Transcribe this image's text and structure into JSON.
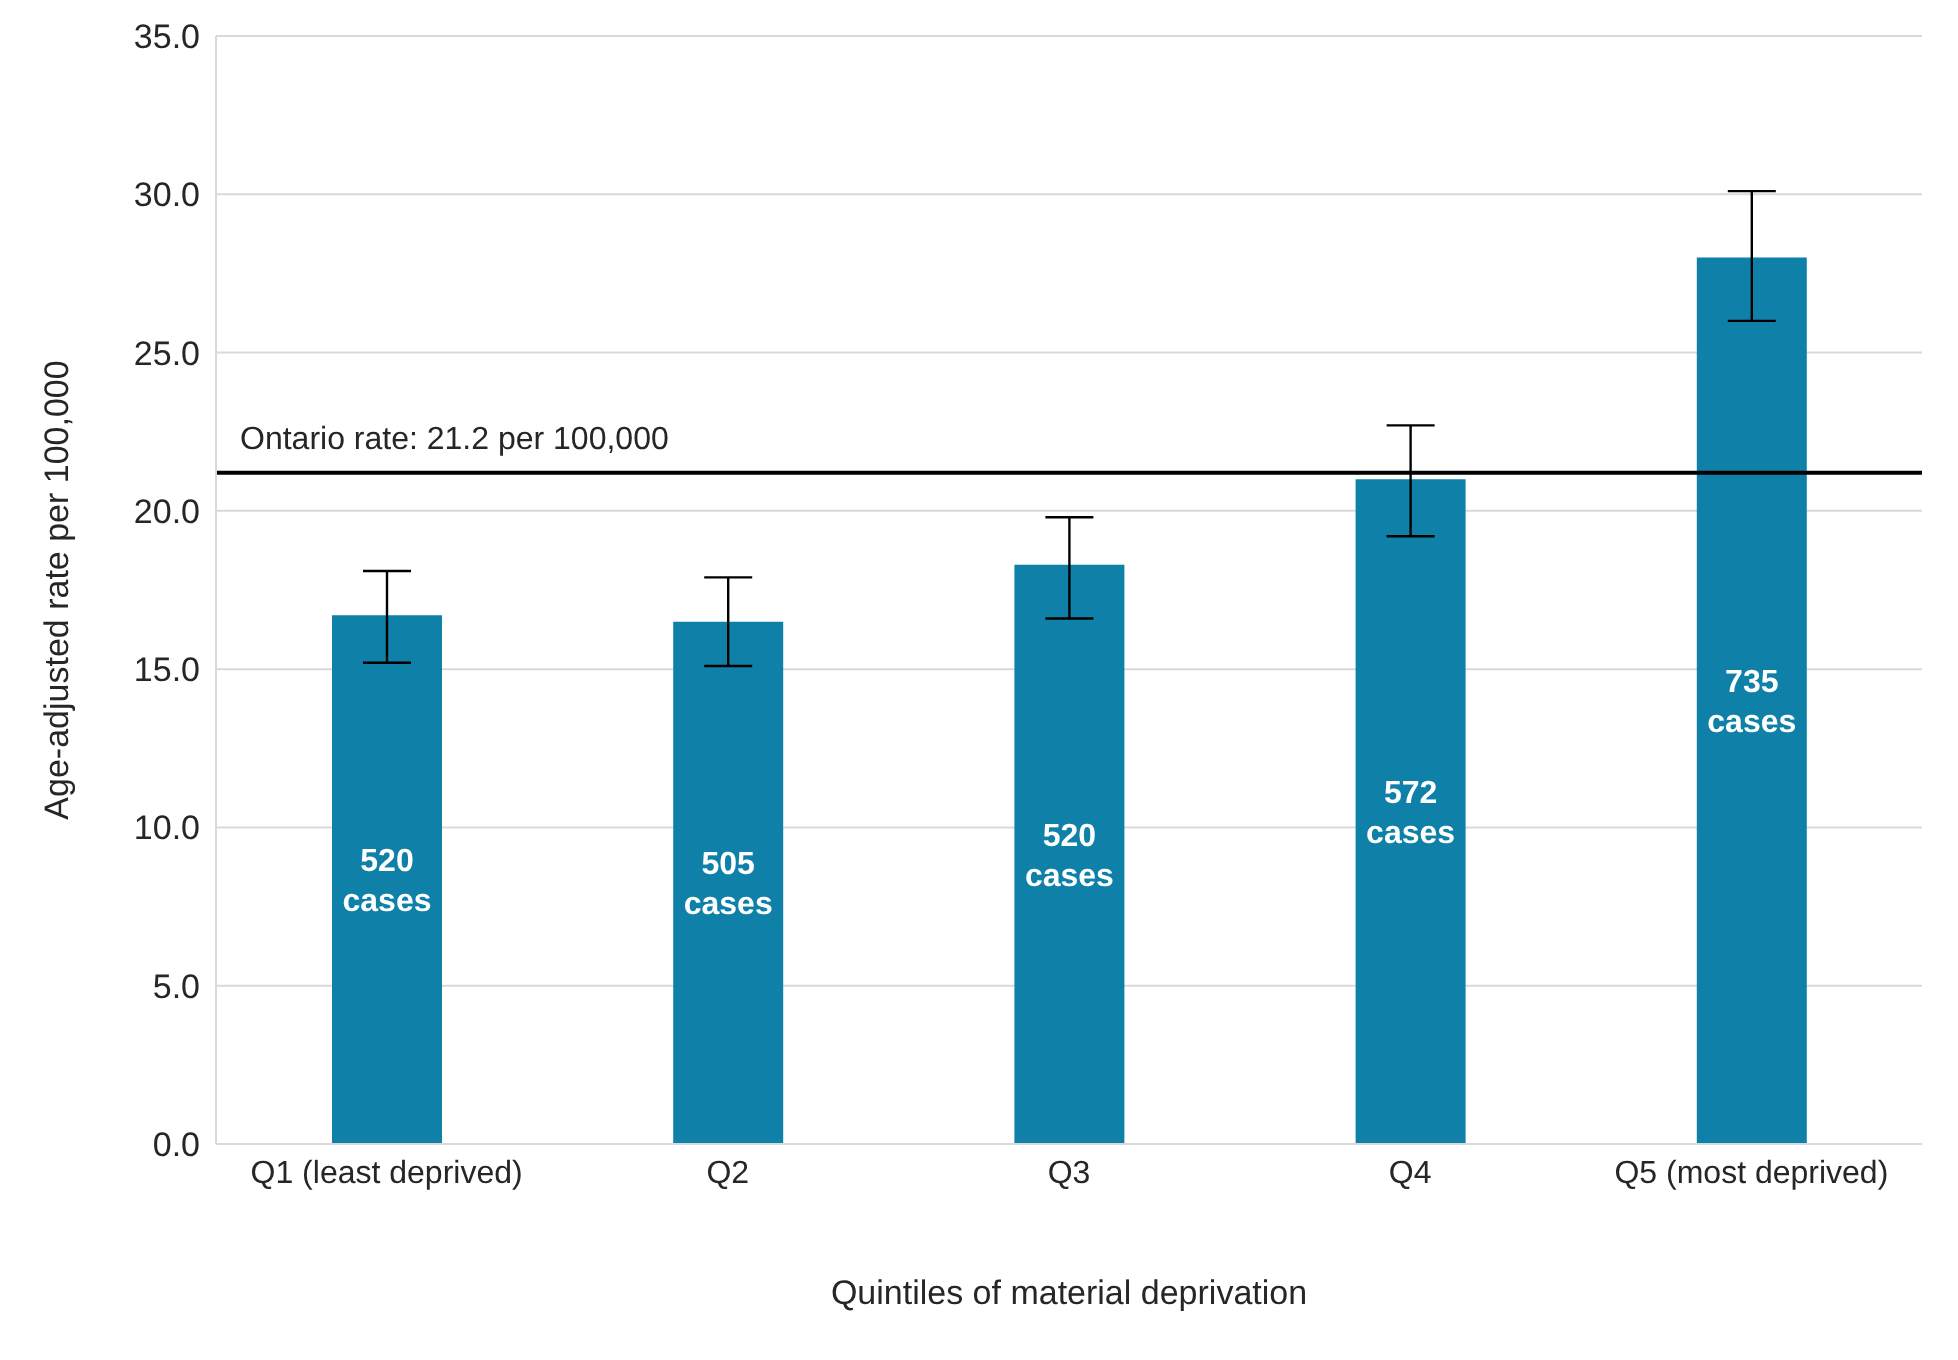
{
  "chart_data": {
    "type": "bar",
    "xlabel": "Quintiles of material deprivation",
    "ylabel": "Age-adjusted rate per 100,000",
    "categories": [
      "Q1 (least deprived)",
      "Q2",
      "Q3",
      "Q4",
      "Q5 (most deprived)"
    ],
    "values": [
      16.7,
      16.5,
      18.3,
      21.0,
      28.0
    ],
    "errors": [
      [
        15.2,
        18.1
      ],
      [
        15.1,
        17.9
      ],
      [
        16.6,
        19.8
      ],
      [
        19.2,
        22.7
      ],
      [
        26.0,
        30.1
      ]
    ],
    "annotations": [
      "520 cases",
      "505 cases",
      "520 cases",
      "572 cases",
      "735 cases"
    ],
    "color": "#0f80a8",
    "ylim": [
      0,
      35
    ],
    "yticks": [
      {
        "value": 0,
        "label": "0.0"
      },
      {
        "value": 5,
        "label": "5.0"
      },
      {
        "value": 10,
        "label": "10.0"
      },
      {
        "value": 15,
        "label": "15.0"
      },
      {
        "value": 20,
        "label": "20.0"
      },
      {
        "value": 25,
        "label": "25.0"
      },
      {
        "value": 30,
        "label": "30.0"
      },
      {
        "value": 35,
        "label": "35.0"
      }
    ],
    "ref_lines": [
      {
        "axis": "y",
        "value": 21.2,
        "label": "Ontario rate: 21.2 per 100,000",
        "color": "#000000"
      }
    ],
    "grid": "y",
    "legend": false
  }
}
